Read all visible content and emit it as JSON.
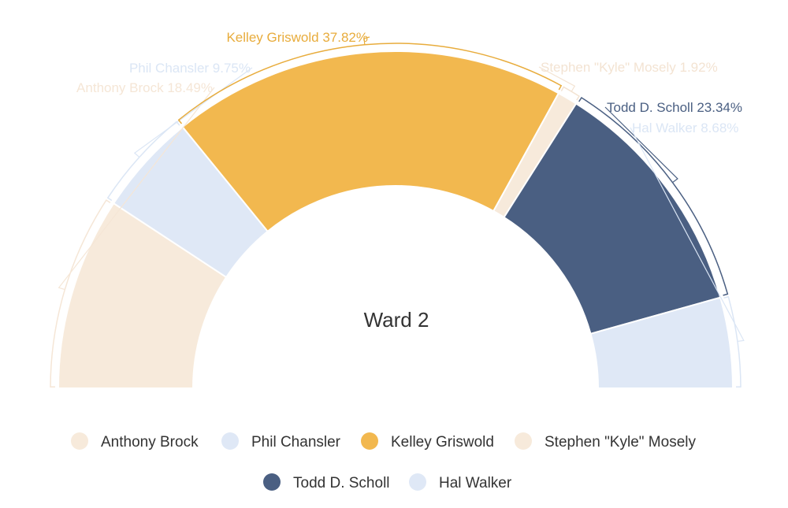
{
  "chart_data": {
    "type": "pie",
    "variant": "semi-donut",
    "title": "Ward 2",
    "series": [
      {
        "values": [
          18.49,
          9.75,
          37.82,
          1.92,
          23.34,
          8.68
        ],
        "categories": [
          "Anthony Brock",
          "Phil Chansler",
          "Kelley Griswold",
          "Stephen \"Kyle\" Mosely",
          "Todd D. Scholl",
          "Hal Walker"
        ]
      }
    ],
    "data_labels": [
      "Anthony Brock 18.49%",
      "Phil Chansler 9.75%",
      "Kelley Griswold 37.82%",
      "Stephen \"Kyle\" Mosely 1.92%",
      "Todd D. Scholl 23.34%",
      "Hal Walker 8.68%"
    ],
    "colors": [
      "#f7eadb",
      "#dfe8f6",
      "#f2b84f",
      "#f7eadb",
      "#4a5f82",
      "#dfe8f6"
    ],
    "label_colors": [
      "#f5e6d6",
      "#dbe6f5",
      "#e8ac3c",
      "#f3e3d2",
      "#4a5f82",
      "#dbe6f5"
    ],
    "legend": {
      "position": "bottom",
      "rows": [
        [
          "Anthony Brock",
          "Phil Chansler",
          "Kelley Griswold",
          "Stephen \"Kyle\" Mosely"
        ],
        [
          "Todd D. Scholl",
          "Hal Walker"
        ]
      ]
    }
  }
}
